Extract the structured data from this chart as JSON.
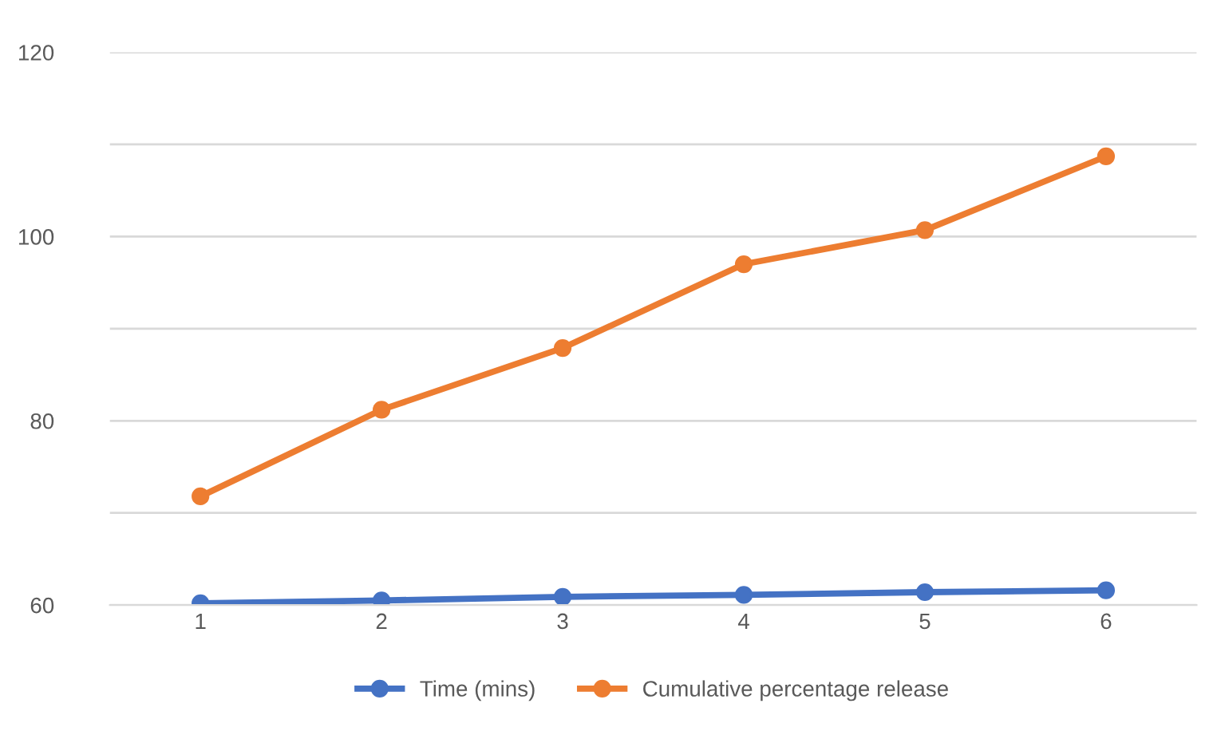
{
  "chart_data": {
    "type": "line",
    "categories": [
      "1",
      "2",
      "3",
      "4",
      "5",
      "6"
    ],
    "series": [
      {
        "name": "Time (mins)",
        "color": "#4472c4",
        "values": [
          60.2,
          60.5,
          60.9,
          61.1,
          61.4,
          61.6
        ]
      },
      {
        "name": "Cumulative percentage release",
        "color": "#ed7d31",
        "values": [
          71.8,
          81.2,
          87.9,
          97.0,
          100.7,
          108.7
        ]
      }
    ],
    "ylim": [
      60,
      120
    ],
    "yticks": [
      60,
      {
        "value": 70,
        "label": null
      },
      80,
      {
        "value": 90,
        "label": null
      },
      100,
      {
        "value": 110,
        "label": null
      },
      120
    ],
    "grid": "y",
    "legend": "bottom",
    "marker": "circle",
    "line_style": "solid"
  }
}
